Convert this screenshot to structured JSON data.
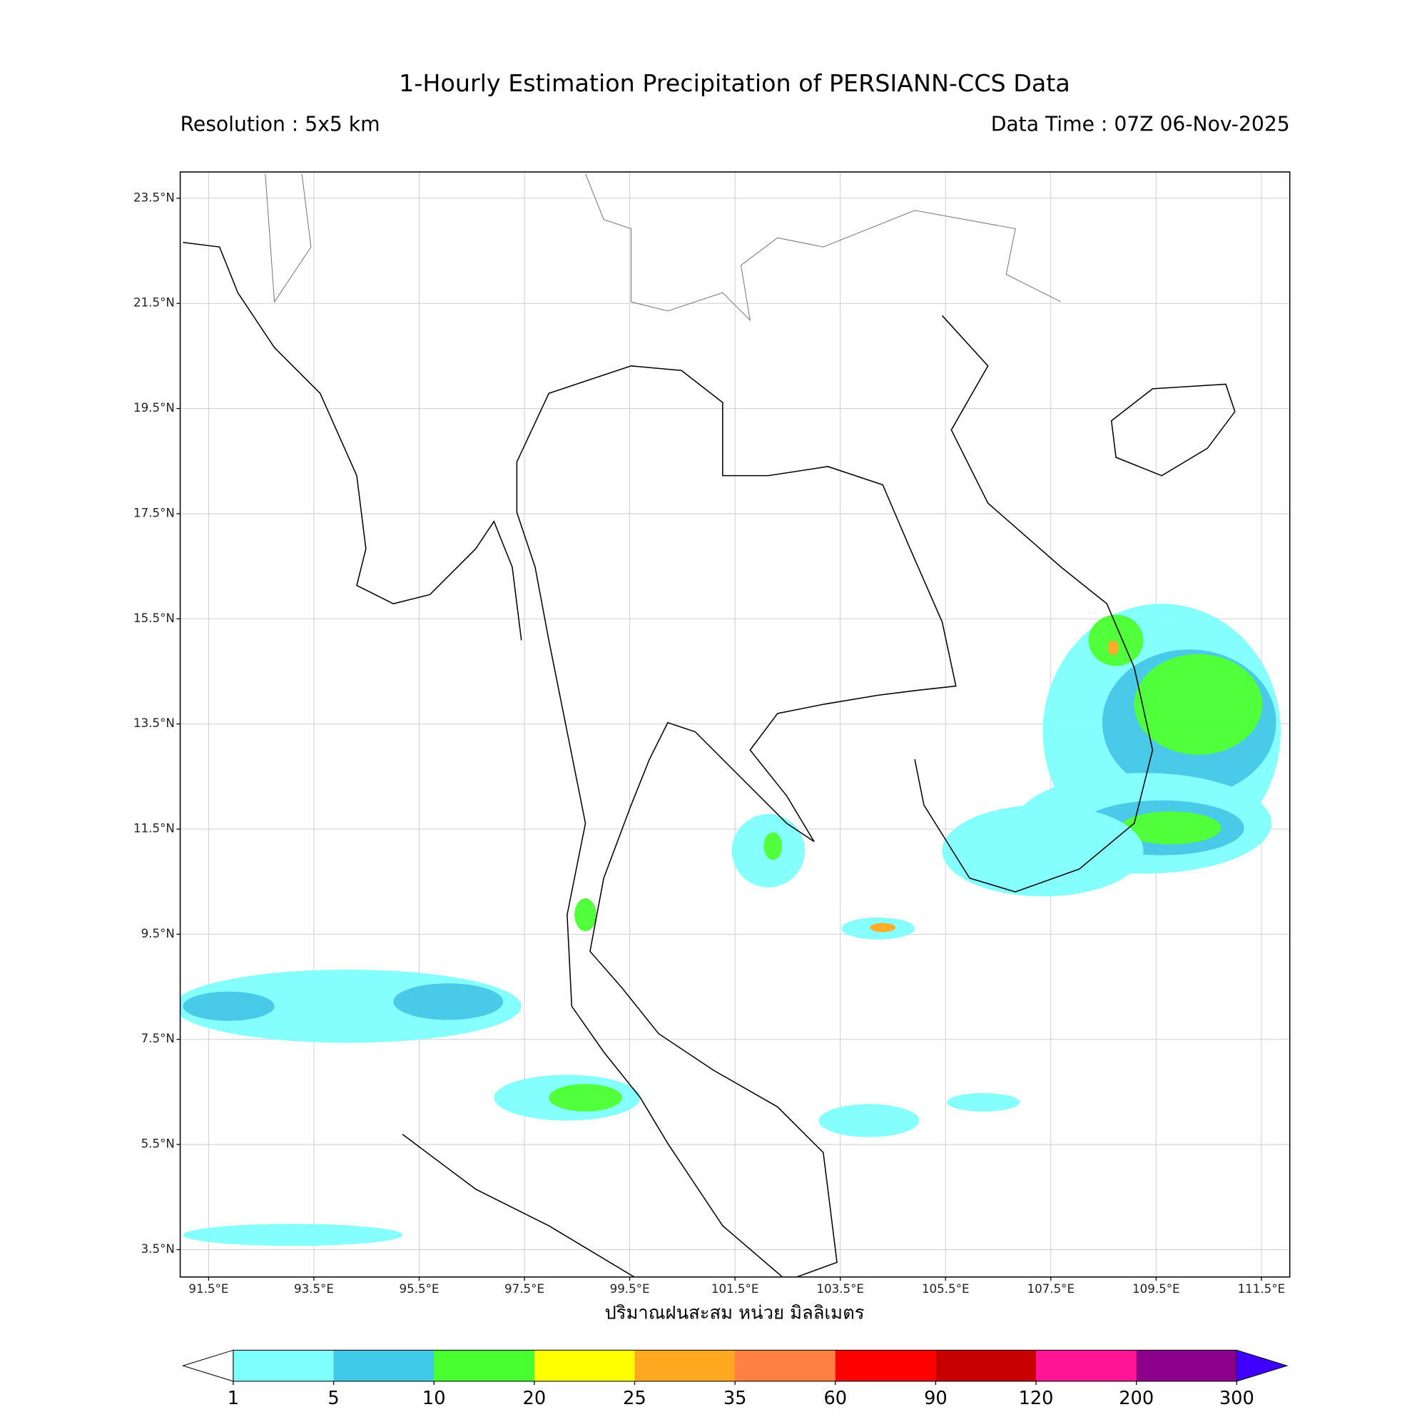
{
  "map": {
    "title": "1-Hourly Estimation Precipitation of PERSIANN-CCS Data",
    "resolution": "Resolution : 5x5 km",
    "data_time": "Data Time : 07Z 06-Nov-2025",
    "xlabel": "ปริมาณฝนสะสม หน่วย มิลลิเมตร",
    "xlim": [
      90.96,
      112.04
    ],
    "ylim": [
      2.98,
      24.0
    ],
    "grid": true,
    "xticks": [
      {
        "value": 91.5,
        "label": "91.5°E"
      },
      {
        "value": 93.5,
        "label": "93.5°E"
      },
      {
        "value": 95.5,
        "label": "95.5°E"
      },
      {
        "value": 97.5,
        "label": "97.5°E"
      },
      {
        "value": 99.5,
        "label": "99.5°E"
      },
      {
        "value": 101.5,
        "label": "101.5°E"
      },
      {
        "value": 103.5,
        "label": "103.5°E"
      },
      {
        "value": 105.5,
        "label": "105.5°E"
      },
      {
        "value": 107.5,
        "label": "107.5°E"
      },
      {
        "value": 109.5,
        "label": "109.5°E"
      },
      {
        "value": 111.5,
        "label": "111.5°E"
      }
    ],
    "yticks": [
      {
        "value": 23.5,
        "label": "23.5°N"
      },
      {
        "value": 21.5,
        "label": "21.5°N"
      },
      {
        "value": 19.5,
        "label": "19.5°N"
      },
      {
        "value": 17.5,
        "label": "17.5°N"
      },
      {
        "value": 15.5,
        "label": "15.5°N"
      },
      {
        "value": 13.5,
        "label": "13.5°N"
      },
      {
        "value": 11.5,
        "label": "11.5°N"
      },
      {
        "value": 9.5,
        "label": "9.5°N"
      },
      {
        "value": 7.5,
        "label": "7.5°N"
      },
      {
        "value": 5.5,
        "label": "5.5°N"
      },
      {
        "value": 3.5,
        "label": "3.5°N"
      }
    ],
    "colorbar": {
      "levels": [
        1,
        5,
        10,
        20,
        25,
        35,
        60,
        90,
        120,
        200,
        300
      ],
      "colors": [
        "#80ffff",
        "#40c8e8",
        "#48ff30",
        "#ffff00",
        "#ffa820",
        "#ff8040",
        "#ff0000",
        "#c80000",
        "#ff1493",
        "#8b008b"
      ],
      "under_color": "#ffffff",
      "over_color": "#4000ff"
    }
  }
}
